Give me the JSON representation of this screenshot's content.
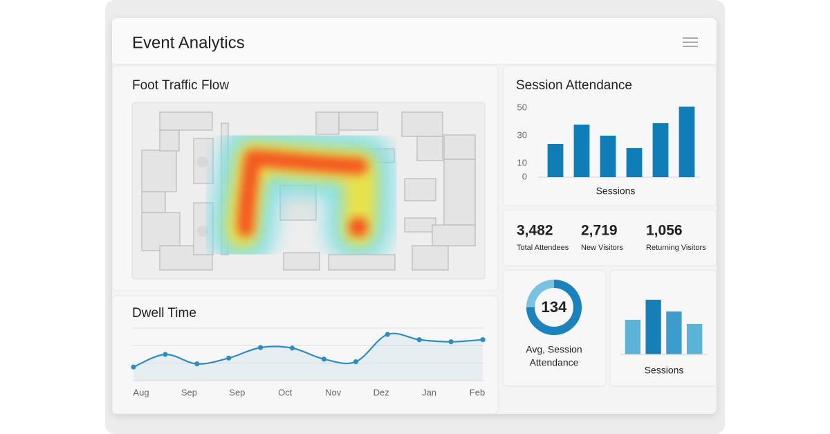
{
  "header": {
    "title": "Event Analytics"
  },
  "heatmap": {
    "title": "Foot Traffic Flow"
  },
  "stats": [
    {
      "value": "3,482",
      "label": "Total Attendees"
    },
    {
      "value": "2,719",
      "label": "New Visitors"
    },
    {
      "value": "1,056",
      "label": "Returning Visitors"
    }
  ],
  "donut": {
    "value": "134",
    "label": [
      "Avg, Session",
      "Attendance"
    ]
  },
  "chart_data": [
    {
      "type": "bar",
      "title": "Session Attendance",
      "x_label": "Sessions",
      "categories": [
        null,
        null,
        null,
        null,
        null,
        null
      ],
      "values": [
        24,
        38,
        30,
        21,
        39,
        51
      ],
      "color": "#0f7db8",
      "ylim": [
        0,
        52
      ],
      "yticks": [
        0,
        10,
        30,
        50
      ]
    },
    {
      "type": "line",
      "title": "Dwell Time",
      "x_labels": [
        "Aug",
        "Sep",
        "Sep",
        "Oct",
        "Nov",
        "Dez",
        "Jan",
        "Feb"
      ],
      "values": [
        26,
        50,
        32,
        43,
        63,
        62,
        41,
        36,
        88,
        78,
        74,
        78
      ],
      "color": "#2a8dc4",
      "ylim": [
        0,
        100
      ],
      "grid": true
    },
    {
      "type": "bar",
      "x_label": "Sessions",
      "categories": [
        null,
        null,
        null,
        null
      ],
      "values": [
        50,
        79,
        62,
        44
      ],
      "colors": [
        "#5ab4d8",
        "#167fb8",
        "#3a9dcc",
        "#5ab4d8"
      ],
      "ylim": [
        0,
        90
      ]
    }
  ]
}
